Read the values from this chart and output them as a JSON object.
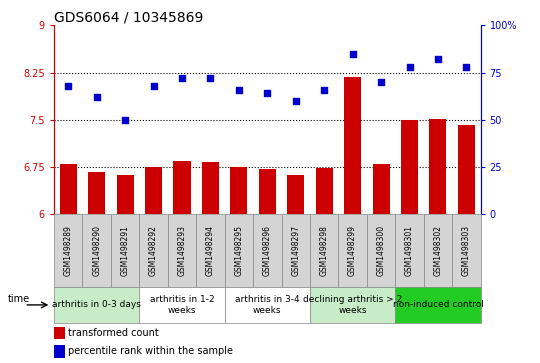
{
  "title": "GDS6064 / 10345869",
  "samples": [
    "GSM1498289",
    "GSM1498290",
    "GSM1498291",
    "GSM1498292",
    "GSM1498293",
    "GSM1498294",
    "GSM1498295",
    "GSM1498296",
    "GSM1498297",
    "GSM1498298",
    "GSM1498299",
    "GSM1498300",
    "GSM1498301",
    "GSM1498302",
    "GSM1498303"
  ],
  "transformed_count": [
    6.8,
    6.67,
    6.63,
    6.75,
    6.84,
    6.83,
    6.75,
    6.72,
    6.63,
    6.74,
    8.18,
    6.8,
    7.5,
    7.52,
    7.42
  ],
  "percentile_rank": [
    68,
    62,
    50,
    68,
    72,
    72,
    66,
    64,
    60,
    66,
    85,
    70,
    78,
    82,
    78
  ],
  "ylim_left": [
    6,
    9
  ],
  "ylim_right": [
    0,
    100
  ],
  "yticks_left": [
    6,
    6.75,
    7.5,
    8.25,
    9
  ],
  "yticks_right": [
    0,
    25,
    50,
    75,
    100
  ],
  "ytick_labels_left": [
    "6",
    "6.75",
    "7.5",
    "8.25",
    "9"
  ],
  "ytick_labels_right": [
    "0",
    "25",
    "50",
    "75",
    "100%"
  ],
  "hlines": [
    6.75,
    7.5,
    8.25
  ],
  "bar_color": "#cc0000",
  "dot_color": "#0000cc",
  "bar_bottom": 6,
  "groups": [
    {
      "label": "arthritis in 0-3 days",
      "start": 0,
      "end": 3,
      "color": "#c8ecc8"
    },
    {
      "label": "arthritis in 1-2\nweeks",
      "start": 3,
      "end": 6,
      "color": "#ffffff"
    },
    {
      "label": "arthritis in 3-4\nweeks",
      "start": 6,
      "end": 9,
      "color": "#ffffff"
    },
    {
      "label": "declining arthritis > 2\nweeks",
      "start": 9,
      "end": 12,
      "color": "#c8ecc8"
    },
    {
      "label": "non-induced control",
      "start": 12,
      "end": 15,
      "color": "#22cc22"
    }
  ],
  "legend_red_label": "transformed count",
  "legend_blue_label": "percentile rank within the sample",
  "time_label": "time",
  "bar_color_hex": "#cc0000",
  "dot_color_hex": "#0000cc",
  "left_axis_color": "#cc0000",
  "right_axis_color": "#0000cc",
  "bar_width": 0.6,
  "tick_label_fontsize": 7,
  "group_label_fontsize": 6.5,
  "title_fontsize": 10,
  "sample_label_fontsize": 5.5,
  "figsize": [
    5.4,
    3.63
  ],
  "dpi": 100
}
